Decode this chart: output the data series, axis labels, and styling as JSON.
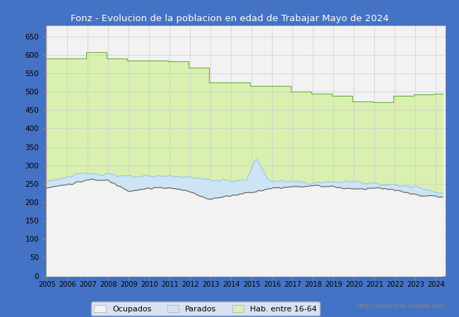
{
  "title": "Fonz - Evolucion de la poblacion en edad de Trabajar Mayo de 2024",
  "title_color": "#ffffff",
  "title_bg_color": "#4472c4",
  "ylabel_values": [
    0,
    50,
    100,
    150,
    200,
    250,
    300,
    350,
    400,
    450,
    500,
    550,
    600,
    650
  ],
  "ylim": [
    0,
    680
  ],
  "color_hab": "#d9f0b0",
  "color_hab_line": "#70ad47",
  "color_ocupados": "#f2f2f2",
  "color_ocupados_line": "#595959",
  "color_parados": "#cce4f4",
  "color_parados_line": "#9dc3e6",
  "watermark": "http://www.foro-ciudad.com",
  "legend_labels": [
    "Ocupados",
    "Parados",
    "Hab. entre 16-64"
  ],
  "bg_color": "#4472c4",
  "plot_bg_color": "#f2f2f2"
}
